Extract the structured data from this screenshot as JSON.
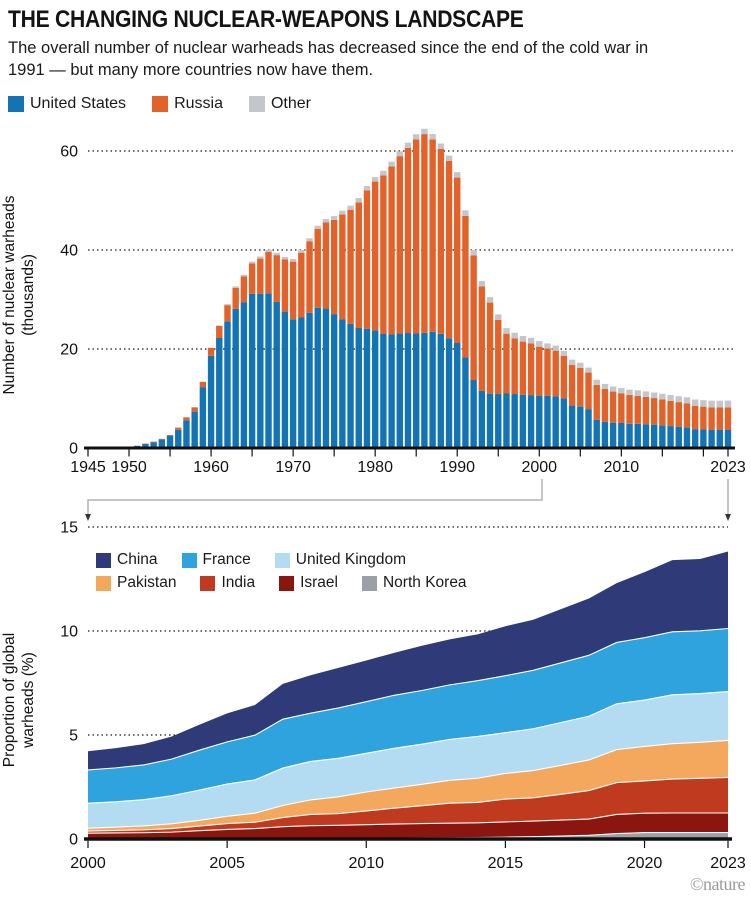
{
  "header": {
    "title": "THE CHANGING NUCLEAR-WEAPONS LANDSCAPE",
    "subtitle": "The overall number of nuclear warheads has decreased since the end of the cold war in 1991 — but many more countries now have them."
  },
  "credit": "©nature",
  "colors": {
    "axis": "#111111",
    "grid": "#1a1a1a",
    "connector_line": "#b3b3b3",
    "arrowhead": "#333333"
  },
  "chart_data": [
    {
      "type": "bar",
      "stacked": true,
      "title": "",
      "xlabel": "",
      "ylabel": "Number of nuclear warheads (thousands)",
      "ylabel_lines": [
        "Number of nuclear warheads",
        "(thousands)"
      ],
      "ylim": [
        0,
        65
      ],
      "yticks": [
        0,
        20,
        40,
        60
      ],
      "grid": "dotted-horizontal",
      "legend_position": "above-top-left",
      "x_start": 1945,
      "x_end": 2023,
      "xticks_labeled": [
        1945,
        1950,
        1960,
        1970,
        1980,
        1990,
        2000,
        2010,
        2023
      ],
      "xticks_minor": [
        1955,
        1965,
        1975,
        1985,
        1995,
        2005,
        2015,
        2020
      ],
      "series": [
        {
          "name": "United States",
          "color": "#1273b5",
          "values": [
            0.002,
            0.009,
            0.013,
            0.05,
            0.17,
            0.299,
            0.438,
            0.841,
            1.169,
            1.703,
            2.422,
            3.692,
            5.543,
            7.345,
            12.298,
            18.638,
            22.229,
            25.54,
            28.133,
            29.463,
            31.139,
            31.175,
            31.255,
            29.561,
            27.552,
            26.008,
            26.365,
            27.296,
            28.335,
            28.17,
            27.052,
            25.956,
            25.099,
            24.243,
            24.107,
            23.764,
            23.031,
            22.937,
            23.154,
            23.228,
            23.135,
            23.254,
            23.49,
            23.077,
            22.174,
            21.211,
            18.306,
            13.731,
            11.536,
            10.979,
            10.904,
            11.011,
            10.903,
            10.732,
            10.685,
            10.577,
            10.526,
            10.457,
            10.027,
            8.57,
            8.36,
            7.853,
            5.709,
            5.273,
            5.113,
            5.066,
            4.897,
            4.881,
            4.804,
            4.717,
            4.571,
            4.435,
            4.304,
            4.178,
            3.805,
            3.75,
            3.708,
            3.708,
            3.708
          ]
        },
        {
          "name": "Russia",
          "color": "#e2622a",
          "values": [
            0,
            0,
            0,
            0,
            0.001,
            0.005,
            0.025,
            0.05,
            0.12,
            0.15,
            0.2,
            0.426,
            0.66,
            0.869,
            1.06,
            1.605,
            2.471,
            3.322,
            4.238,
            5.221,
            6.129,
            7.089,
            8.339,
            9.399,
            10.538,
            11.643,
            13.092,
            14.478,
            15.915,
            17.385,
            19.055,
            21.205,
            23.044,
            25.393,
            27.935,
            30.062,
            32.049,
            33.952,
            35.804,
            37.431,
            39.197,
            40.159,
            38.859,
            37.333,
            35.805,
            33.417,
            28.595,
            25.155,
            21.101,
            18.399,
            14.978,
            12.085,
            11.264,
            10.764,
            10.451,
            9.896,
            9.589,
            9.207,
            8.57,
            8.243,
            7.816,
            7.385,
            7.051,
            6.666,
            6.286,
            6.0,
            5.829,
            5.671,
            5.518,
            5.37,
            5.228,
            5.092,
            4.961,
            4.836,
            4.715,
            4.6,
            4.495,
            4.477,
            4.489
          ]
        },
        {
          "name": "Other",
          "color": "#c3c7cb",
          "values": [
            0,
            0,
            0,
            0,
            0,
            0,
            0,
            0.001,
            0.001,
            0.005,
            0.01,
            0.015,
            0.02,
            0.022,
            0.025,
            0.036,
            0.05,
            0.205,
            0.28,
            0.31,
            0.385,
            0.425,
            0.455,
            0.475,
            0.495,
            0.545,
            0.565,
            0.595,
            0.655,
            0.695,
            0.735,
            0.775,
            0.815,
            0.855,
            0.875,
            0.895,
            0.925,
            0.955,
            0.985,
            1.02,
            1.05,
            1.08,
            1.1,
            1.1,
            1.1,
            1.1,
            1.1,
            1.1,
            1.1,
            1.1,
            1.12,
            1.12,
            1.12,
            1.13,
            1.13,
            1.126,
            1.017,
            1.025,
            1.033,
            1.041,
            1.053,
            1.011,
            1.032,
            1.002,
            1.018,
            1.039,
            1.06,
            1.091,
            1.112,
            1.123,
            1.155,
            1.167,
            1.19,
            1.223,
            1.27,
            1.315,
            1.353,
            1.37,
            1.379
          ]
        }
      ]
    },
    {
      "type": "area",
      "stacked": true,
      "title": "",
      "xlabel": "",
      "ylabel": "Proportion of global warheads (%)",
      "ylabel_lines": [
        "Proportion of global",
        "warheads (%)"
      ],
      "ylim": [
        0,
        15
      ],
      "yticks": [
        0,
        5,
        10,
        15
      ],
      "grid": "dotted-horizontal",
      "legend_position": "inside-top-left",
      "x_start": 2000,
      "x_end": 2023,
      "xticks_labeled": [
        2000,
        2005,
        2010,
        2015,
        2020,
        2023
      ],
      "stack_order": "bottom-to-top",
      "series": [
        {
          "name": "North Korea",
          "color": "#9aa0a5",
          "values": [
            0,
            0,
            0,
            0,
            0,
            0,
            0.01,
            0.01,
            0.02,
            0.02,
            0.03,
            0.04,
            0.05,
            0.06,
            0.07,
            0.09,
            0.11,
            0.14,
            0.18,
            0.26,
            0.31,
            0.31,
            0.31,
            0.31
          ]
        },
        {
          "name": "Israel",
          "color": "#8b160f",
          "values": [
            0.28,
            0.29,
            0.3,
            0.33,
            0.4,
            0.46,
            0.49,
            0.58,
            0.62,
            0.64,
            0.66,
            0.68,
            0.69,
            0.7,
            0.71,
            0.73,
            0.75,
            0.77,
            0.78,
            0.92,
            0.93,
            0.94,
            0.94,
            0.94
          ]
        },
        {
          "name": "India",
          "color": "#c03a20",
          "values": [
            0.1,
            0.12,
            0.14,
            0.17,
            0.22,
            0.28,
            0.31,
            0.44,
            0.54,
            0.56,
            0.66,
            0.76,
            0.86,
            0.96,
            0.98,
            1.1,
            1.12,
            1.24,
            1.37,
            1.53,
            1.55,
            1.63,
            1.67,
            1.71
          ]
        },
        {
          "name": "Pakistan",
          "color": "#f3a85d",
          "values": [
            0.14,
            0.16,
            0.19,
            0.23,
            0.28,
            0.35,
            0.43,
            0.58,
            0.7,
            0.81,
            0.91,
            0.97,
            1.03,
            1.1,
            1.16,
            1.23,
            1.31,
            1.39,
            1.47,
            1.59,
            1.66,
            1.7,
            1.73,
            1.78
          ]
        },
        {
          "name": "United Kingdom",
          "color": "#b3dcf2",
          "values": [
            1.2,
            1.22,
            1.26,
            1.35,
            1.45,
            1.55,
            1.6,
            1.8,
            1.85,
            1.85,
            1.86,
            1.91,
            1.93,
            1.97,
            2.01,
            1.96,
            2.01,
            2.06,
            2.1,
            2.2,
            2.23,
            2.35,
            2.34,
            2.35
          ]
        },
        {
          "name": "France",
          "color": "#2ea3dd",
          "values": [
            1.6,
            1.63,
            1.67,
            1.76,
            1.92,
            2.03,
            2.15,
            2.35,
            2.32,
            2.42,
            2.48,
            2.55,
            2.58,
            2.62,
            2.68,
            2.74,
            2.81,
            2.87,
            2.93,
            2.95,
            3.0,
            3.03,
            3.02,
            3.03
          ]
        },
        {
          "name": "China",
          "color": "#2f3a78",
          "values": [
            0.9,
            0.95,
            1.0,
            1.08,
            1.22,
            1.37,
            1.45,
            1.7,
            1.82,
            1.93,
            1.98,
            2.04,
            2.15,
            2.19,
            2.23,
            2.38,
            2.43,
            2.58,
            2.73,
            2.85,
            3.15,
            3.45,
            3.45,
            3.7
          ]
        }
      ],
      "legend_rows": [
        [
          "China",
          "France",
          "United Kingdom"
        ],
        [
          "Pakistan",
          "India",
          "Israel",
          "North Korea"
        ]
      ]
    }
  ]
}
